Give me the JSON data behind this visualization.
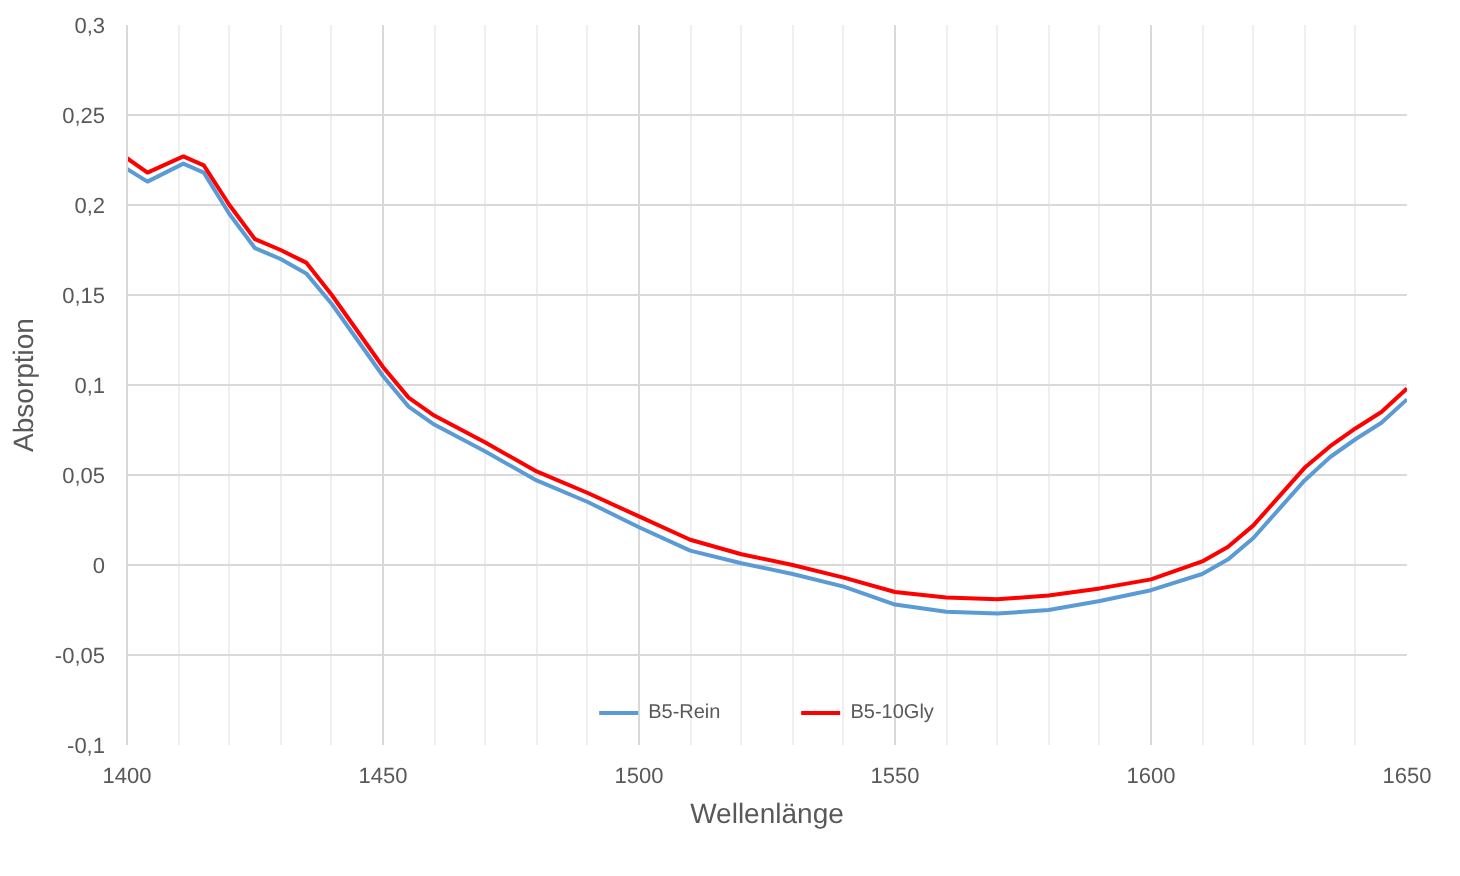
{
  "chart_data": {
    "type": "line",
    "xlabel": "Wellenlänge",
    "ylabel": "Absorption",
    "x": [
      1400,
      1404,
      1411,
      1415,
      1420,
      1425,
      1430,
      1435,
      1440,
      1445,
      1450,
      1455,
      1460,
      1470,
      1480,
      1490,
      1500,
      1510,
      1520,
      1530,
      1540,
      1550,
      1560,
      1570,
      1580,
      1590,
      1600,
      1610,
      1615,
      1620,
      1625,
      1630,
      1635,
      1640,
      1645,
      1650
    ],
    "series": [
      {
        "name": "B5-Rein",
        "color": "#5b9bd5",
        "values": [
          0.22,
          0.213,
          0.223,
          0.218,
          0.195,
          0.176,
          0.17,
          0.162,
          0.145,
          0.125,
          0.105,
          0.088,
          0.078,
          0.063,
          0.047,
          0.035,
          0.021,
          0.008,
          0.001,
          -0.005,
          -0.012,
          -0.022,
          -0.026,
          -0.027,
          -0.025,
          -0.02,
          -0.014,
          -0.005,
          0.003,
          0.015,
          0.031,
          0.047,
          0.06,
          0.07,
          0.079,
          0.092
        ]
      },
      {
        "name": "B5-10Gly",
        "color": "#ff0000",
        "values": [
          0.226,
          0.218,
          0.227,
          0.222,
          0.2,
          0.181,
          0.175,
          0.168,
          0.15,
          0.13,
          0.11,
          0.093,
          0.083,
          0.068,
          0.052,
          0.04,
          0.027,
          0.014,
          0.006,
          0.0,
          -0.007,
          -0.015,
          -0.018,
          -0.019,
          -0.017,
          -0.013,
          -0.008,
          0.002,
          0.01,
          0.022,
          0.038,
          0.054,
          0.066,
          0.076,
          0.085,
          0.098
        ]
      }
    ],
    "xlim": [
      1400,
      1650
    ],
    "xticks": [
      1400,
      1450,
      1500,
      1550,
      1600,
      1650
    ],
    "ylim": [
      -0.1,
      0.3
    ],
    "yticks": [
      {
        "value": -0.1,
        "label": "-0,1"
      },
      {
        "value": -0.05,
        "label": "-0,05"
      },
      {
        "value": 0,
        "label": "0"
      },
      {
        "value": 0.05,
        "label": "0,05"
      },
      {
        "value": 0.1,
        "label": "0,1"
      },
      {
        "value": 0.15,
        "label": "0,15"
      },
      {
        "value": 0.2,
        "label": "0,2"
      },
      {
        "value": 0.25,
        "label": "0,25"
      },
      {
        "value": 0.3,
        "label": "0,3"
      }
    ],
    "grid": true,
    "legend": "bottom",
    "marker": "none",
    "line_style": "solid"
  }
}
